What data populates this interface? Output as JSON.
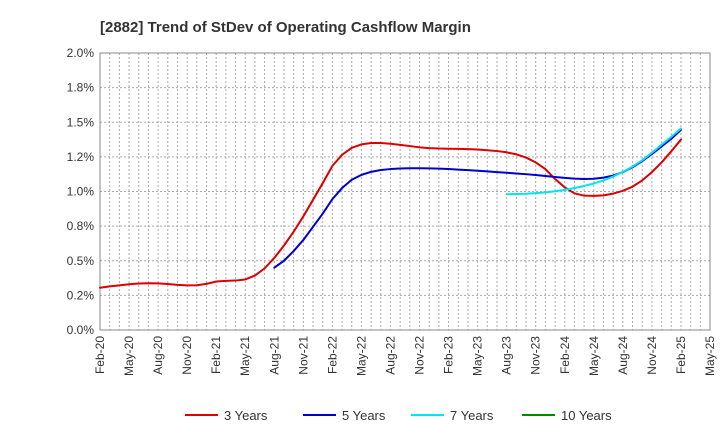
{
  "chart_data": {
    "type": "line",
    "title": "[2882]  Trend of StDev of Operating Cashflow Margin",
    "xlabel": "",
    "ylabel": "",
    "ylim": [
      0,
      2.0
    ],
    "y_ticks": [
      "0.0%",
      "0.2%",
      "0.5%",
      "0.8%",
      "1.0%",
      "1.2%",
      "1.5%",
      "1.8%",
      "2.0%"
    ],
    "x_ticks": [
      "Feb-20",
      "May-20",
      "Aug-20",
      "Nov-20",
      "Feb-21",
      "May-21",
      "Aug-21",
      "Nov-21",
      "Feb-22",
      "May-22",
      "Aug-22",
      "Nov-22",
      "Feb-23",
      "May-23",
      "Aug-23",
      "Nov-23",
      "Feb-24",
      "May-24",
      "Aug-24",
      "Nov-24",
      "Feb-25",
      "May-25"
    ],
    "grid": true,
    "legend_position": "bottom",
    "series": [
      {
        "name": "3 Years",
        "color": "#dd0000",
        "x": [
          "Feb-20",
          "Mar-20",
          "Apr-20",
          "May-20",
          "Jun-20",
          "Jul-20",
          "Aug-20",
          "Sep-20",
          "Oct-20",
          "Nov-20",
          "Dec-20",
          "Jan-21",
          "Feb-21",
          "Mar-21",
          "Apr-21",
          "May-21",
          "Jun-21",
          "Jul-21",
          "Aug-21",
          "Sep-21",
          "Oct-21",
          "Nov-21",
          "Dec-21",
          "Jan-22",
          "Feb-22",
          "Mar-22",
          "Apr-22",
          "May-22",
          "Jun-22",
          "Jul-22",
          "Aug-22",
          "Sep-22",
          "Oct-22",
          "Nov-22",
          "Dec-22",
          "Jan-23",
          "Feb-23",
          "Mar-23",
          "Apr-23",
          "May-23",
          "Jun-23",
          "Jul-23",
          "Aug-23",
          "Sep-23",
          "Oct-23",
          "Nov-23",
          "Dec-23",
          "Jan-24",
          "Feb-24",
          "Mar-24",
          "Apr-24",
          "May-24",
          "Jun-24",
          "Jul-24",
          "Aug-24",
          "Sep-24",
          "Oct-24",
          "Nov-24",
          "Dec-24",
          "Jan-25",
          "Feb-25"
        ],
        "values": [
          0.305,
          0.315,
          0.322,
          0.33,
          0.336,
          0.338,
          0.337,
          0.332,
          0.326,
          0.322,
          0.323,
          0.333,
          0.35,
          0.355,
          0.357,
          0.365,
          0.393,
          0.445,
          0.52,
          0.61,
          0.71,
          0.82,
          0.94,
          1.06,
          1.185,
          1.265,
          1.315,
          1.34,
          1.35,
          1.35,
          1.345,
          1.337,
          1.328,
          1.319,
          1.313,
          1.31,
          1.309,
          1.308,
          1.306,
          1.303,
          1.298,
          1.292,
          1.283,
          1.268,
          1.245,
          1.21,
          1.162,
          1.09,
          1.03,
          0.987,
          0.97,
          0.968,
          0.972,
          0.985,
          1.005,
          1.035,
          1.08,
          1.14,
          1.21,
          1.29,
          1.375
        ]
      },
      {
        "name": "5 Years",
        "color": "#0000cc",
        "x": [
          "Aug-21",
          "Sep-21",
          "Oct-21",
          "Nov-21",
          "Dec-21",
          "Jan-22",
          "Feb-22",
          "Mar-22",
          "Apr-22",
          "May-22",
          "Jun-22",
          "Jul-22",
          "Aug-22",
          "Sep-22",
          "Oct-22",
          "Nov-22",
          "Dec-22",
          "Jan-23",
          "Feb-23",
          "Mar-23",
          "Apr-23",
          "May-23",
          "Jun-23",
          "Jul-23",
          "Aug-23",
          "Sep-23",
          "Oct-23",
          "Nov-23",
          "Dec-23",
          "Jan-24",
          "Feb-24",
          "Mar-24",
          "Apr-24",
          "May-24",
          "Jun-24",
          "Jul-24",
          "Aug-24",
          "Sep-24",
          "Oct-24",
          "Nov-24",
          "Dec-24",
          "Jan-25",
          "Feb-25"
        ],
        "values": [
          0.45,
          0.5,
          0.57,
          0.65,
          0.745,
          0.84,
          0.945,
          1.025,
          1.085,
          1.12,
          1.142,
          1.155,
          1.162,
          1.166,
          1.168,
          1.168,
          1.167,
          1.165,
          1.162,
          1.158,
          1.154,
          1.15,
          1.145,
          1.14,
          1.135,
          1.13,
          1.125,
          1.119,
          1.112,
          1.105,
          1.098,
          1.093,
          1.09,
          1.092,
          1.1,
          1.115,
          1.14,
          1.175,
          1.22,
          1.27,
          1.325,
          1.38,
          1.445
        ]
      },
      {
        "name": "7 Years",
        "color": "#00e5ee",
        "x": [
          "Aug-23",
          "Sep-23",
          "Oct-23",
          "Nov-23",
          "Dec-23",
          "Jan-24",
          "Feb-24",
          "Mar-24",
          "Apr-24",
          "May-24",
          "Jun-24",
          "Jul-24",
          "Aug-24",
          "Sep-24",
          "Oct-24",
          "Nov-24",
          "Dec-24",
          "Jan-25",
          "Feb-25"
        ],
        "values": [
          0.98,
          0.982,
          0.984,
          0.988,
          0.994,
          1.002,
          1.012,
          1.025,
          1.04,
          1.058,
          1.08,
          1.108,
          1.142,
          1.18,
          1.225,
          1.28,
          1.338,
          1.395,
          1.455
        ]
      },
      {
        "name": "10 Years",
        "color": "#008800",
        "x": [],
        "values": []
      }
    ]
  }
}
